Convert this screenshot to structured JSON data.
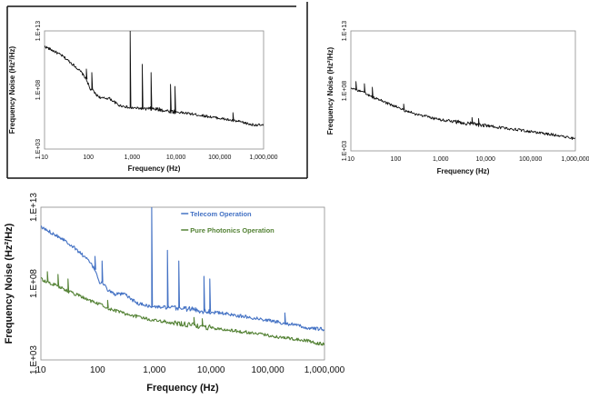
{
  "chart_data": [
    {
      "type": "line",
      "ylabel": "Frequency Noise (Hz²/Hz)",
      "xlabel": "Frequency (Hz)",
      "x_scale": "log",
      "y_scale": "log",
      "xlim": [
        10,
        1000000
      ],
      "ylim": [
        1000,
        10000000000000
      ],
      "x_ticks": [
        10,
        100,
        1000,
        10000,
        100000,
        1000000
      ],
      "x_tick_labels": [
        "10",
        "100",
        "1,000",
        "10,000",
        "100,000",
        "1,000,000"
      ],
      "y_ticks": [
        1000,
        100000000,
        10000000000000
      ],
      "y_tick_labels": [
        "1.E+03",
        "1.E+08",
        "1.E+13"
      ],
      "grid": false,
      "series": [
        {
          "color": "#111111",
          "x": [
            10,
            13,
            18,
            25,
            35,
            50,
            70,
            90,
            100,
            110,
            120,
            150,
            200,
            300,
            500,
            700,
            850,
            1000,
            1500,
            2000,
            3000,
            5000,
            7000,
            10000,
            20000,
            50000,
            100000,
            200000,
            300000,
            500000,
            1000000
          ],
          "y": [
            500000000000.0,
            300000000000.0,
            160000000000.0,
            80000000000.0,
            30000000000.0,
            10000000000.0,
            3000000000.0,
            800000000.0,
            300000000.0,
            100000000.0,
            120000000.0,
            40000000.0,
            20000000.0,
            20000000.0,
            5000000.0,
            4000000.0,
            3000000.0,
            3000000.0,
            2800000.0,
            2500000.0,
            2500000.0,
            2000000.0,
            1600000.0,
            1400000.0,
            1000000.0,
            600000.0,
            400000.0,
            250000.0,
            200000.0,
            120000.0,
            100000.0
          ]
        }
      ],
      "peaks": [
        {
          "x": 90,
          "y": 6000000000.0
        },
        {
          "x": 120,
          "y": 3000000000.0
        },
        {
          "x": 900,
          "y": 10000000000000.0
        },
        {
          "x": 1700,
          "y": 15000000000.0
        },
        {
          "x": 2700,
          "y": 3000000000.0
        },
        {
          "x": 7500,
          "y": 300000000.0
        },
        {
          "x": 9500,
          "y": 200000000.0
        },
        {
          "x": 200000,
          "y": 1200000.0
        }
      ]
    },
    {
      "type": "line",
      "ylabel": "Frequency Noise (Hz²/Hz)",
      "xlabel": "Frequency (Hz)",
      "x_scale": "log",
      "y_scale": "log",
      "xlim": [
        10,
        1000000
      ],
      "ylim": [
        1000,
        10000000000000
      ],
      "x_ticks": [
        10,
        100,
        1000,
        10000,
        100000,
        1000000
      ],
      "x_tick_labels": [
        "10",
        "100",
        "1,000",
        "10,000",
        "100,000",
        "1,000,000"
      ],
      "y_ticks": [
        1000,
        100000000,
        10000000000000
      ],
      "y_tick_labels": [
        "1.E+03",
        "1.E+08",
        "1.E+13"
      ],
      "grid": false,
      "series": [
        {
          "color": "#111111",
          "x": [
            10,
            15,
            20,
            30,
            50,
            70,
            100,
            150,
            200,
            300,
            500,
            700,
            1000,
            2000,
            3000,
            5000,
            7000,
            10000,
            20000,
            50000,
            100000,
            200000,
            500000,
            1000000
          ],
          "y": [
            200000000.0,
            100000000.0,
            70000000.0,
            30000000.0,
            15000000.0,
            8000000.0,
            5000000.0,
            2500000.0,
            1800000.0,
            1100000.0,
            700000.0,
            500000.0,
            400000.0,
            280000.0,
            220000.0,
            180000.0,
            150000.0,
            130000.0,
            90000.0,
            60000.0,
            40000.0,
            28000.0,
            18000.0,
            10000.0
          ]
        }
      ],
      "peaks": [
        {
          "x": 13,
          "y": 600000000.0
        },
        {
          "x": 20,
          "y": 400000000.0
        },
        {
          "x": 30,
          "y": 200000000.0
        },
        {
          "x": 150,
          "y": 8000000.0
        },
        {
          "x": 5000,
          "y": 600000.0
        },
        {
          "x": 7000,
          "y": 500000.0
        }
      ]
    },
    {
      "type": "line",
      "ylabel": "Frequency Noise (Hz²/Hz)",
      "xlabel": "Frequency (Hz)",
      "x_scale": "log",
      "y_scale": "log",
      "xlim": [
        10,
        1000000
      ],
      "ylim": [
        1000,
        10000000000000
      ],
      "x_ticks": [
        10,
        100,
        1000,
        10000,
        100000,
        1000000
      ],
      "x_tick_labels": [
        "10",
        "100",
        "1,000",
        "10,000",
        "100,000",
        "1,000,000"
      ],
      "y_ticks": [
        1000,
        100000000,
        10000000000000
      ],
      "y_tick_labels": [
        "1.E+03",
        "1.E+08",
        "1.E+13"
      ],
      "grid": false,
      "legend": "top-center",
      "series": [
        {
          "name": "Telecom Operation",
          "color": "#4472c4",
          "x": [
            10,
            13,
            18,
            25,
            35,
            50,
            70,
            90,
            100,
            110,
            120,
            150,
            200,
            300,
            500,
            700,
            850,
            1000,
            1500,
            2000,
            3000,
            5000,
            7000,
            10000,
            20000,
            50000,
            100000,
            200000,
            300000,
            500000,
            1000000
          ],
          "y": [
            500000000000.0,
            300000000000.0,
            160000000000.0,
            80000000000.0,
            30000000000.0,
            10000000000.0,
            3000000000.0,
            800000000.0,
            300000000.0,
            100000000.0,
            120000000.0,
            40000000.0,
            20000000.0,
            20000000.0,
            5000000.0,
            4000000.0,
            3000000.0,
            3000000.0,
            2800000.0,
            2500000.0,
            2500000.0,
            2000000.0,
            1600000.0,
            1400000.0,
            1000000.0,
            600000.0,
            400000.0,
            250000.0,
            200000.0,
            120000.0,
            100000.0
          ],
          "peaks": [
            {
              "x": 90,
              "y": 6000000000.0
            },
            {
              "x": 120,
              "y": 3000000000.0
            },
            {
              "x": 900,
              "y": 10000000000000.0
            },
            {
              "x": 1700,
              "y": 15000000000.0
            },
            {
              "x": 2700,
              "y": 3000000000.0
            },
            {
              "x": 7500,
              "y": 300000000.0
            },
            {
              "x": 9500,
              "y": 200000000.0
            },
            {
              "x": 200000,
              "y": 1200000.0
            }
          ]
        },
        {
          "name": "Pure Photonics Operation",
          "color": "#548235",
          "x": [
            10,
            15,
            20,
            30,
            50,
            70,
            100,
            150,
            200,
            300,
            500,
            700,
            1000,
            2000,
            3000,
            5000,
            7000,
            10000,
            20000,
            50000,
            100000,
            200000,
            500000,
            1000000
          ],
          "y": [
            200000000.0,
            100000000.0,
            70000000.0,
            30000000.0,
            15000000.0,
            8000000.0,
            5000000.0,
            2500000.0,
            1800000.0,
            1100000.0,
            700000.0,
            500000.0,
            400000.0,
            280000.0,
            220000.0,
            180000.0,
            150000.0,
            130000.0,
            90000.0,
            60000.0,
            40000.0,
            28000.0,
            18000.0,
            10000.0
          ],
          "peaks": [
            {
              "x": 13,
              "y": 600000000.0
            },
            {
              "x": 20,
              "y": 400000000.0
            },
            {
              "x": 30,
              "y": 200000000.0
            },
            {
              "x": 150,
              "y": 8000000.0
            },
            {
              "x": 5000,
              "y": 600000.0
            },
            {
              "x": 7000,
              "y": 500000.0
            }
          ]
        }
      ]
    }
  ]
}
